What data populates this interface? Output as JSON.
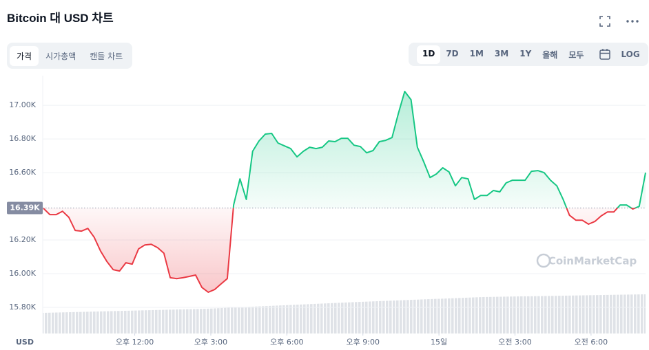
{
  "header": {
    "title": "Bitcoin 대 USD 차트"
  },
  "tabs": [
    "가격",
    "시가총액",
    "캔들 차트"
  ],
  "ranges": [
    "1D",
    "7D",
    "1M",
    "3M",
    "1Y",
    "올해",
    "모두"
  ],
  "log_button": "LOG",
  "watermark": "CoinMarketCap",
  "chart_data": {
    "type": "line",
    "y_unit": "USD",
    "x": [
      8.4,
      8.65,
      8.9,
      9.15,
      9.4,
      9.65,
      9.9,
      10.15,
      10.4,
      10.65,
      10.9,
      11.15,
      11.4,
      11.65,
      11.9,
      12.15,
      12.4,
      12.65,
      12.9,
      13.15,
      13.4,
      13.65,
      13.9,
      14.15,
      14.4,
      14.65,
      14.9,
      15.15,
      15.4,
      15.65,
      15.9,
      16.15,
      16.4,
      16.65,
      16.9,
      17.15,
      17.4,
      17.65,
      17.9,
      18.15,
      18.4,
      18.65,
      18.9,
      19.15,
      19.4,
      19.65,
      19.9,
      20.15,
      20.4,
      20.65,
      20.9,
      21.15,
      21.4,
      21.65,
      21.9,
      22.15,
      22.4,
      22.65,
      22.9,
      23.15,
      23.4,
      23.65,
      23.9,
      24.15,
      24.4,
      24.65,
      24.9,
      25.15,
      25.4,
      25.65,
      25.9,
      26.15,
      26.4,
      26.65,
      26.9,
      27.15,
      27.4,
      27.65,
      27.9,
      28.15,
      28.4,
      28.65,
      28.9,
      29.15,
      29.4,
      29.65,
      29.9,
      30.15,
      30.4,
      30.65,
      30.9,
      31.15,
      31.4,
      31.65,
      31.9,
      32.15
    ],
    "values": [
      16.388,
      16.351,
      16.351,
      16.371,
      16.335,
      16.257,
      16.253,
      16.269,
      16.216,
      16.135,
      16.073,
      16.024,
      16.016,
      16.065,
      16.057,
      16.147,
      16.171,
      16.175,
      16.155,
      16.122,
      15.976,
      15.971,
      15.976,
      15.984,
      15.992,
      15.918,
      15.89,
      15.906,
      15.939,
      15.971,
      16.408,
      16.563,
      16.441,
      16.727,
      16.788,
      16.829,
      16.833,
      16.776,
      16.759,
      16.743,
      16.694,
      16.727,
      16.751,
      16.743,
      16.751,
      16.788,
      16.784,
      16.804,
      16.804,
      16.763,
      16.755,
      16.718,
      16.731,
      16.784,
      16.792,
      16.808,
      16.951,
      17.082,
      17.033,
      16.751,
      16.665,
      16.571,
      16.592,
      16.629,
      16.604,
      16.522,
      16.571,
      16.563,
      16.441,
      16.465,
      16.465,
      16.494,
      16.486,
      16.539,
      16.555,
      16.555,
      16.555,
      16.608,
      16.612,
      16.6,
      16.555,
      16.522,
      16.441,
      16.347,
      16.318,
      16.318,
      16.294,
      16.31,
      16.343,
      16.367,
      16.367,
      16.408,
      16.408,
      16.384,
      16.4,
      16.6
    ],
    "xlim": [
      8.37,
      32.15
    ],
    "ylim": [
      15.645,
      17.176
    ],
    "xticks": [
      {
        "value": 12,
        "label": "오후 12:00"
      },
      {
        "value": 15,
        "label": "오후 3:00"
      },
      {
        "value": 18,
        "label": "오후 6:00"
      },
      {
        "value": 21,
        "label": "오후 9:00"
      },
      {
        "value": 24,
        "label": "15일"
      },
      {
        "value": 27,
        "label": "오전 3:00"
      },
      {
        "value": 30,
        "label": "오전 6:00"
      }
    ],
    "yticks": [
      {
        "value": 15.8,
        "label": "15.80K"
      },
      {
        "value": 16,
        "label": "16.00K"
      },
      {
        "value": 16.2,
        "label": "16.20K"
      },
      {
        "value": 16.6,
        "label": "16.60K"
      },
      {
        "value": 16.8,
        "label": "16.80K"
      },
      {
        "value": 17,
        "label": "17.00K"
      }
    ],
    "baseline": {
      "value": 16.39,
      "label": "16.39K"
    },
    "colors": {
      "up": "#16c784",
      "down": "#ea3943"
    },
    "grid": true
  }
}
